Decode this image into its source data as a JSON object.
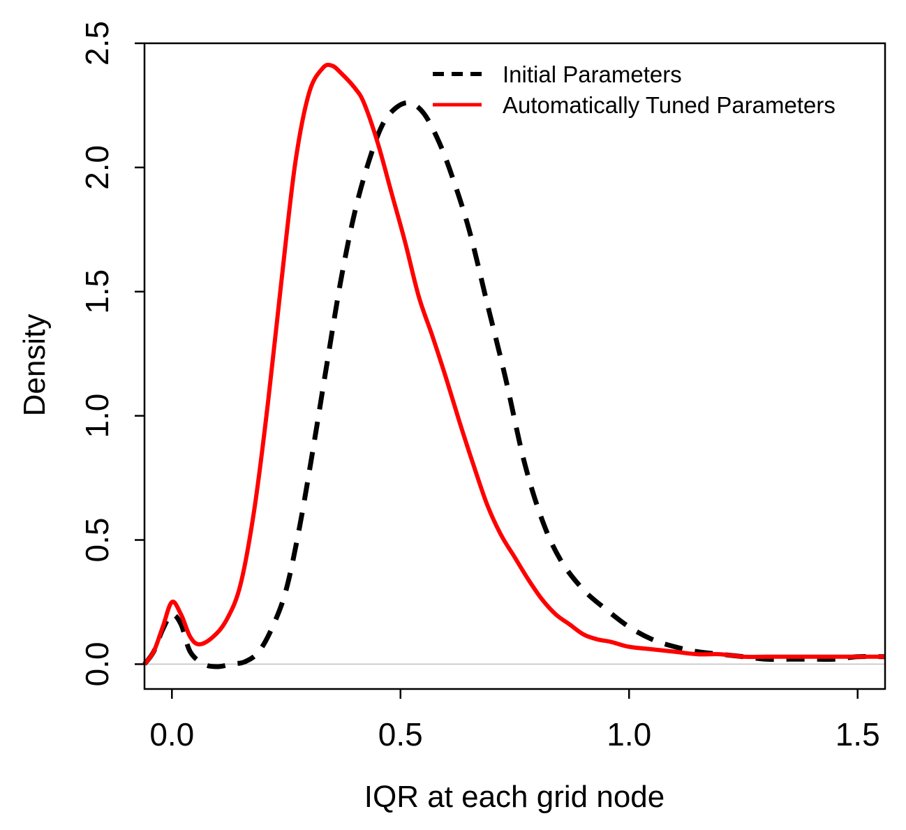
{
  "chart_data": {
    "type": "line",
    "title": "",
    "xlabel": "IQR at each grid node",
    "ylabel": "Density",
    "xlim": [
      -0.06,
      1.56
    ],
    "ylim": [
      -0.1,
      2.5
    ],
    "xticks": [
      0.0,
      0.5,
      1.0,
      1.5
    ],
    "xtick_labels": [
      "0.0",
      "0.5",
      "1.0",
      "1.5"
    ],
    "yticks": [
      0.0,
      0.5,
      1.0,
      1.5,
      2.0,
      2.5
    ],
    "ytick_labels": [
      "0.0",
      "0.5",
      "1.0",
      "1.5",
      "2.0",
      "2.5"
    ],
    "baseline": 0,
    "legend_position": "top-right",
    "series": [
      {
        "name": "Initial Parameters",
        "color": "#000000",
        "style": "dashed",
        "x": [
          -0.06,
          -0.04,
          -0.02,
          0.0,
          0.02,
          0.04,
          0.07,
          0.1,
          0.13,
          0.16,
          0.19,
          0.22,
          0.25,
          0.28,
          0.31,
          0.34,
          0.37,
          0.4,
          0.43,
          0.46,
          0.49,
          0.52,
          0.55,
          0.58,
          0.61,
          0.65,
          0.69,
          0.73,
          0.77,
          0.81,
          0.85,
          0.9,
          0.95,
          1.0,
          1.05,
          1.1,
          1.15,
          1.2,
          1.25,
          1.3,
          1.35,
          1.4,
          1.45,
          1.5,
          1.56
        ],
        "values": [
          0.0,
          0.05,
          0.14,
          0.2,
          0.16,
          0.05,
          0.0,
          -0.01,
          0.0,
          0.01,
          0.05,
          0.15,
          0.3,
          0.56,
          0.88,
          1.22,
          1.55,
          1.82,
          2.02,
          2.17,
          2.24,
          2.26,
          2.22,
          2.12,
          1.98,
          1.75,
          1.45,
          1.15,
          0.82,
          0.58,
          0.42,
          0.3,
          0.22,
          0.15,
          0.1,
          0.07,
          0.05,
          0.04,
          0.03,
          0.02,
          0.02,
          0.02,
          0.02,
          0.03,
          0.03
        ]
      },
      {
        "name": "Automatically Tuned Parameters",
        "color": "#ff0000",
        "style": "solid",
        "x": [
          -0.06,
          -0.04,
          -0.02,
          0.0,
          0.02,
          0.04,
          0.06,
          0.09,
          0.12,
          0.15,
          0.18,
          0.21,
          0.24,
          0.27,
          0.3,
          0.33,
          0.35,
          0.37,
          0.4,
          0.42,
          0.45,
          0.48,
          0.51,
          0.54,
          0.57,
          0.6,
          0.63,
          0.66,
          0.69,
          0.72,
          0.75,
          0.78,
          0.81,
          0.84,
          0.87,
          0.9,
          0.93,
          0.96,
          1.0,
          1.05,
          1.1,
          1.15,
          1.2,
          1.25,
          1.3,
          1.35,
          1.4,
          1.45,
          1.5,
          1.56
        ],
        "values": [
          0.0,
          0.05,
          0.15,
          0.25,
          0.2,
          0.11,
          0.08,
          0.11,
          0.18,
          0.32,
          0.62,
          1.05,
          1.55,
          2.02,
          2.3,
          2.4,
          2.41,
          2.38,
          2.32,
          2.26,
          2.1,
          1.9,
          1.7,
          1.48,
          1.32,
          1.15,
          0.97,
          0.8,
          0.64,
          0.52,
          0.43,
          0.34,
          0.26,
          0.2,
          0.16,
          0.12,
          0.1,
          0.09,
          0.07,
          0.06,
          0.05,
          0.04,
          0.04,
          0.03,
          0.03,
          0.03,
          0.03,
          0.03,
          0.03,
          0.03
        ]
      }
    ]
  }
}
